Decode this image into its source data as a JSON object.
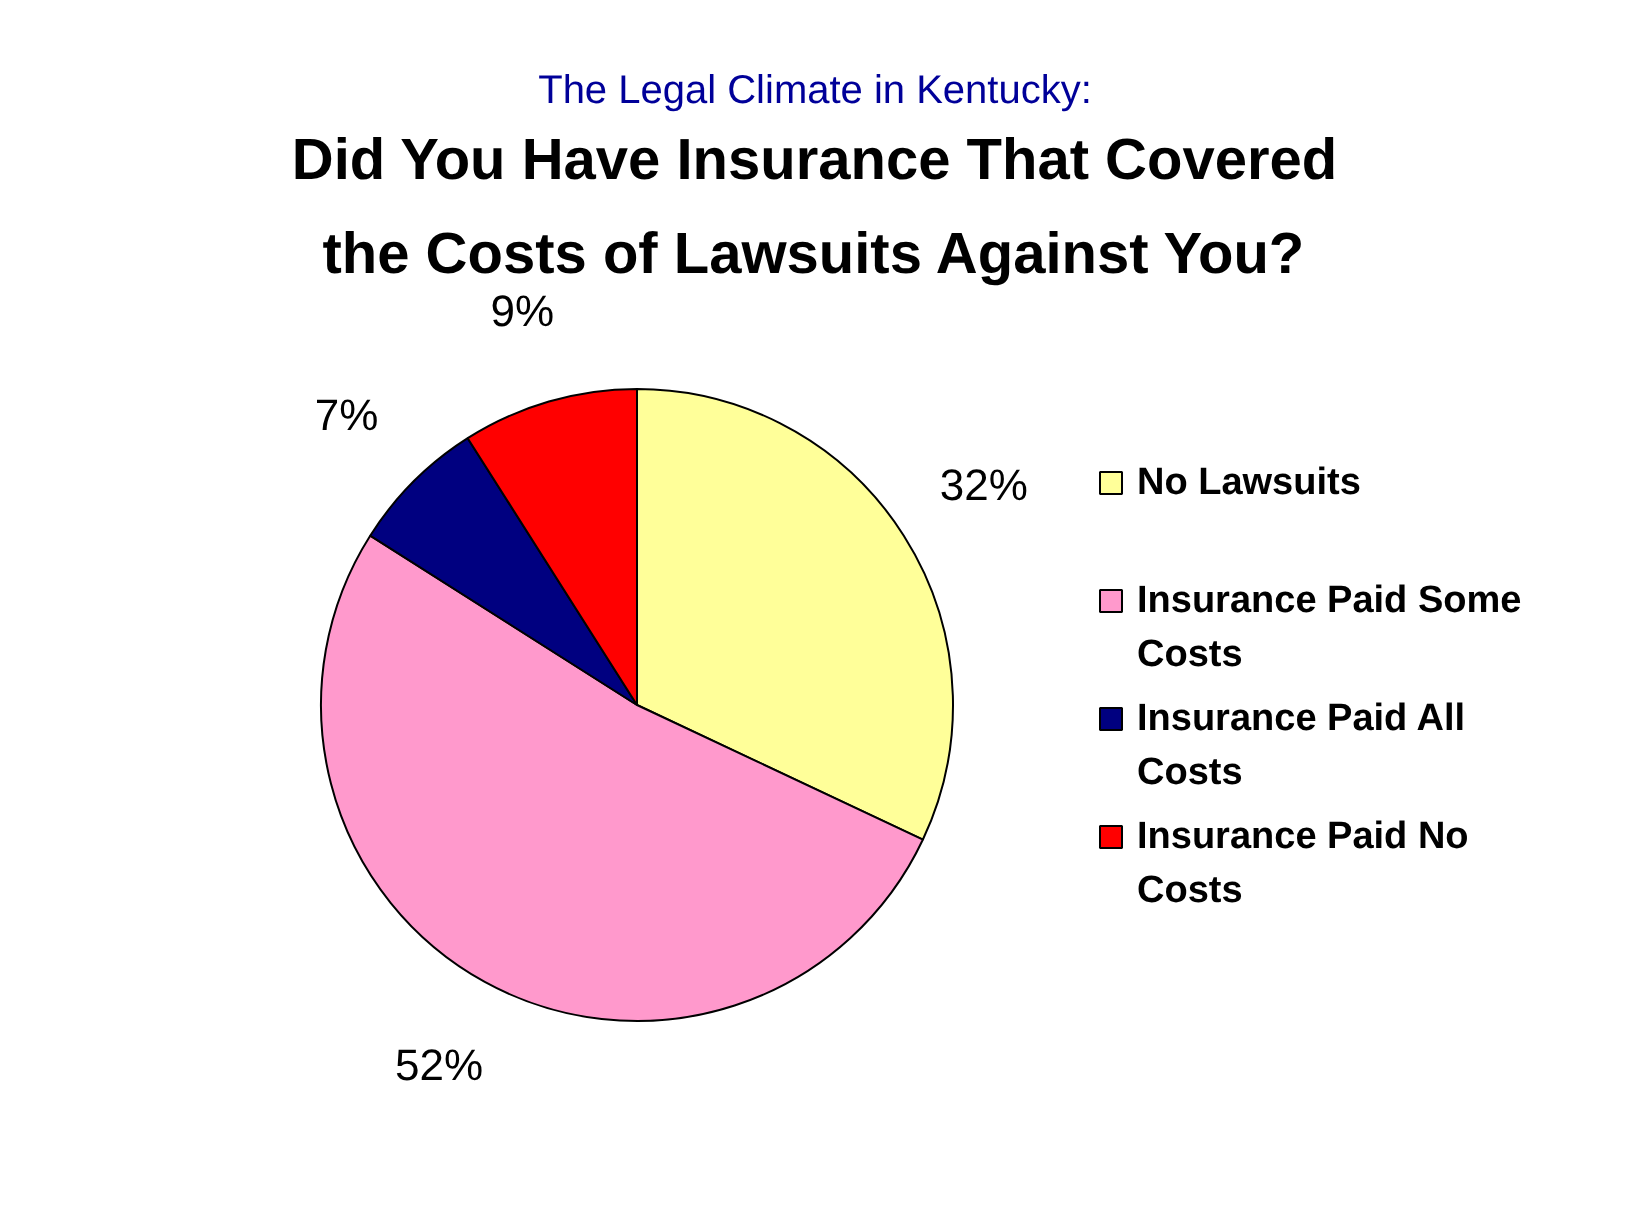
{
  "chart_data": {
    "type": "pie",
    "title": "The Legal Climate in Kentucky:",
    "subtitle": "Did You Have Insurance That Covered the Costs of Lawsuits Against You?",
    "categories": [
      "No Lawsuits",
      "Insurance Paid Some Costs",
      "Insurance Paid All Costs",
      "Insurance Paid No Costs"
    ],
    "values": [
      32,
      52,
      7,
      9
    ],
    "colors": [
      "#ffff99",
      "#ff99cc",
      "#000080",
      "#ff0000"
    ],
    "value_labels": [
      "32%",
      "52%",
      "7%",
      "9%"
    ],
    "legend": "right"
  }
}
